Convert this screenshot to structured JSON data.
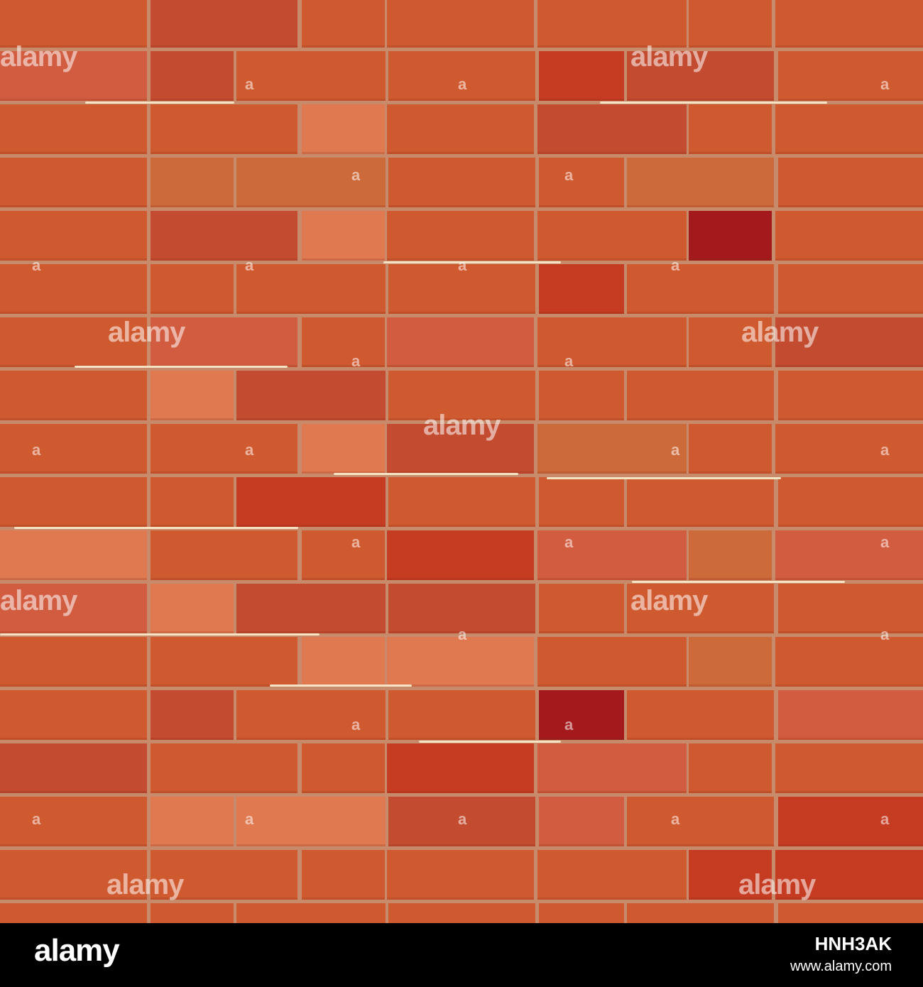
{
  "image": {
    "description_colors": {
      "mortar": "#c78a6a",
      "crack": "#f6e3c4",
      "footer_background": "#000000"
    },
    "brick_palette": [
      "#d05a30",
      "#c34b30",
      "#e07850",
      "#c53c23",
      "#d15c3f",
      "#a3191c",
      "#cd6a3a"
    ]
  },
  "watermark": {
    "text": "alamy",
    "small_text": "a"
  },
  "footer": {
    "logo": "alamy",
    "image_id": "HNH3AK",
    "url": "www.alamy.com"
  }
}
